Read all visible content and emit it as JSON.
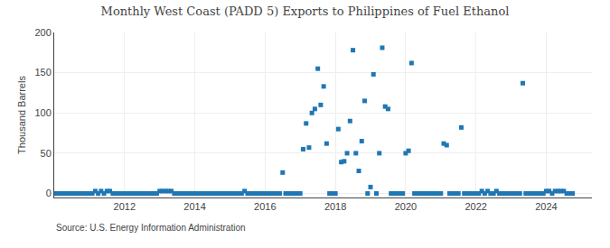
{
  "chart_data": {
    "type": "scatter",
    "title": "Monthly West Coast (PADD 5) Exports to Philippines of Fuel Ethanol",
    "ylabel": "Thousand Barrels",
    "annotations": [
      "Source: U.S. Energy Information Administration"
    ],
    "marker": "square",
    "grid": true,
    "xlim": [
      2010.0,
      2025.3
    ],
    "xticks": [
      2012,
      2014,
      2016,
      2018,
      2020,
      2022,
      2024
    ],
    "ylim": [
      -5,
      200
    ],
    "yticks": [
      0,
      50,
      100,
      150,
      200
    ],
    "x": [
      2010.0,
      2010.083,
      2010.167,
      2010.25,
      2010.333,
      2010.417,
      2010.5,
      2010.583,
      2010.667,
      2010.75,
      2010.833,
      2010.917,
      2011.0,
      2011.083,
      2011.167,
      2011.25,
      2011.333,
      2011.417,
      2011.5,
      2011.583,
      2011.667,
      2011.75,
      2011.833,
      2011.917,
      2012.0,
      2012.083,
      2012.167,
      2012.25,
      2012.333,
      2012.417,
      2012.5,
      2012.583,
      2012.667,
      2012.75,
      2012.833,
      2012.917,
      2013.0,
      2013.083,
      2013.167,
      2013.25,
      2013.333,
      2013.417,
      2013.5,
      2013.583,
      2013.667,
      2013.75,
      2013.833,
      2013.917,
      2014.0,
      2014.083,
      2014.167,
      2014.25,
      2014.333,
      2014.417,
      2014.5,
      2014.583,
      2014.667,
      2014.75,
      2014.833,
      2014.917,
      2015.0,
      2015.083,
      2015.167,
      2015.25,
      2015.333,
      2015.417,
      2015.5,
      2015.583,
      2015.667,
      2015.75,
      2015.833,
      2015.917,
      2016.0,
      2016.083,
      2016.167,
      2016.25,
      2016.333,
      2016.417,
      2016.5,
      2016.583,
      2016.667,
      2016.75,
      2016.833,
      2016.917,
      2017.0,
      2017.083,
      2017.167,
      2017.25,
      2017.333,
      2017.417,
      2017.5,
      2017.583,
      2017.667,
      2017.75,
      2017.833,
      2017.917,
      2018.0,
      2018.083,
      2018.167,
      2018.25,
      2018.333,
      2018.417,
      2018.5,
      2018.583,
      2018.667,
      2018.75,
      2018.833,
      2018.917,
      2019.0,
      2019.083,
      2019.167,
      2019.25,
      2019.333,
      2019.417,
      2019.5,
      2019.583,
      2019.667,
      2019.75,
      2019.833,
      2019.917,
      2020.0,
      2020.083,
      2020.167,
      2020.25,
      2020.333,
      2020.417,
      2020.5,
      2020.583,
      2020.667,
      2020.75,
      2020.833,
      2020.917,
      2021.0,
      2021.083,
      2021.167,
      2021.25,
      2021.333,
      2021.417,
      2021.5,
      2021.583,
      2021.667,
      2021.75,
      2021.833,
      2021.917,
      2022.0,
      2022.083,
      2022.167,
      2022.25,
      2022.333,
      2022.417,
      2022.5,
      2022.583,
      2022.667,
      2022.75,
      2022.833,
      2022.917,
      2023.0,
      2023.083,
      2023.167,
      2023.25,
      2023.333,
      2023.417,
      2023.5,
      2023.583,
      2023.667,
      2023.75,
      2023.833,
      2023.917,
      2024.0,
      2024.083,
      2024.167,
      2024.25,
      2024.333,
      2024.417,
      2024.5,
      2024.583,
      2024.667,
      2024.75
    ],
    "values": [
      0,
      0,
      0,
      0,
      0,
      0,
      0,
      0,
      0,
      0,
      0,
      0,
      0,
      0,
      3,
      0,
      3,
      0,
      3,
      3,
      0,
      0,
      0,
      0,
      0,
      0,
      0,
      0,
      0,
      0,
      0,
      0,
      0,
      0,
      0,
      0,
      3,
      3,
      3,
      3,
      3,
      0,
      0,
      0,
      0,
      0,
      0,
      0,
      0,
      0,
      0,
      0,
      0,
      0,
      0,
      0,
      0,
      0,
      0,
      0,
      0,
      0,
      0,
      0,
      0,
      3,
      0,
      0,
      0,
      0,
      0,
      0,
      0,
      0,
      0,
      0,
      0,
      0,
      26,
      0,
      0,
      0,
      0,
      0,
      0,
      55,
      87,
      57,
      100,
      105,
      155,
      110,
      133,
      62,
      0,
      0,
      0,
      80,
      39,
      40,
      50,
      90,
      178,
      50,
      28,
      65,
      115,
      0,
      8,
      148,
      0,
      50,
      181,
      108,
      105,
      0,
      0,
      0,
      0,
      0,
      50,
      53,
      162,
      0,
      0,
      0,
      0,
      0,
      0,
      0,
      0,
      0,
      0,
      62,
      60,
      0,
      0,
      0,
      0,
      82,
      0,
      0,
      0,
      0,
      0,
      0,
      3,
      0,
      3,
      0,
      0,
      3,
      0,
      0,
      0,
      0,
      0,
      0,
      0,
      0,
      137,
      0,
      0,
      0,
      0,
      0,
      0,
      0,
      3,
      3,
      0,
      3,
      3,
      3,
      3,
      0,
      0,
      0
    ]
  }
}
